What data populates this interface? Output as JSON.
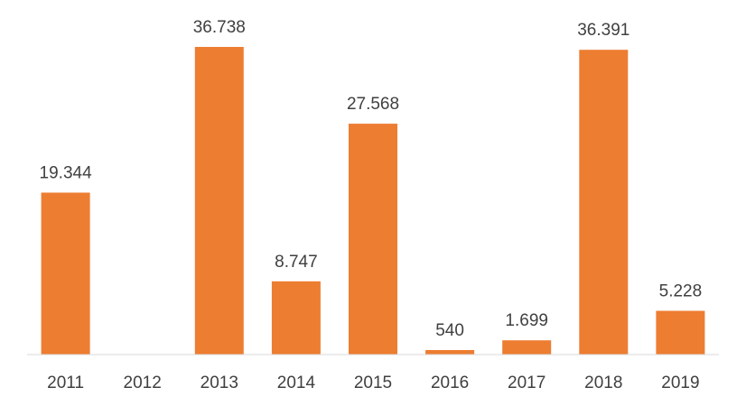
{
  "chart_data": {
    "type": "bar",
    "title": "",
    "xlabel": "",
    "ylabel": "",
    "categories": [
      "2011",
      "2012",
      "2013",
      "2014",
      "2015",
      "2016",
      "2017",
      "2018",
      "2019"
    ],
    "values": [
      19344,
      0,
      36738,
      8747,
      27568,
      540,
      1699,
      36391,
      5228
    ],
    "data_labels": [
      "19.344",
      "",
      "36.738",
      "8.747",
      "27.568",
      "540",
      "1.699",
      "36.391",
      "5.228"
    ],
    "ylim": [
      0,
      36738
    ],
    "grid": false,
    "legend": "none",
    "bar_color": "#ED7D31",
    "axis_color": "#D9D9D9",
    "label_color": "#404040"
  }
}
